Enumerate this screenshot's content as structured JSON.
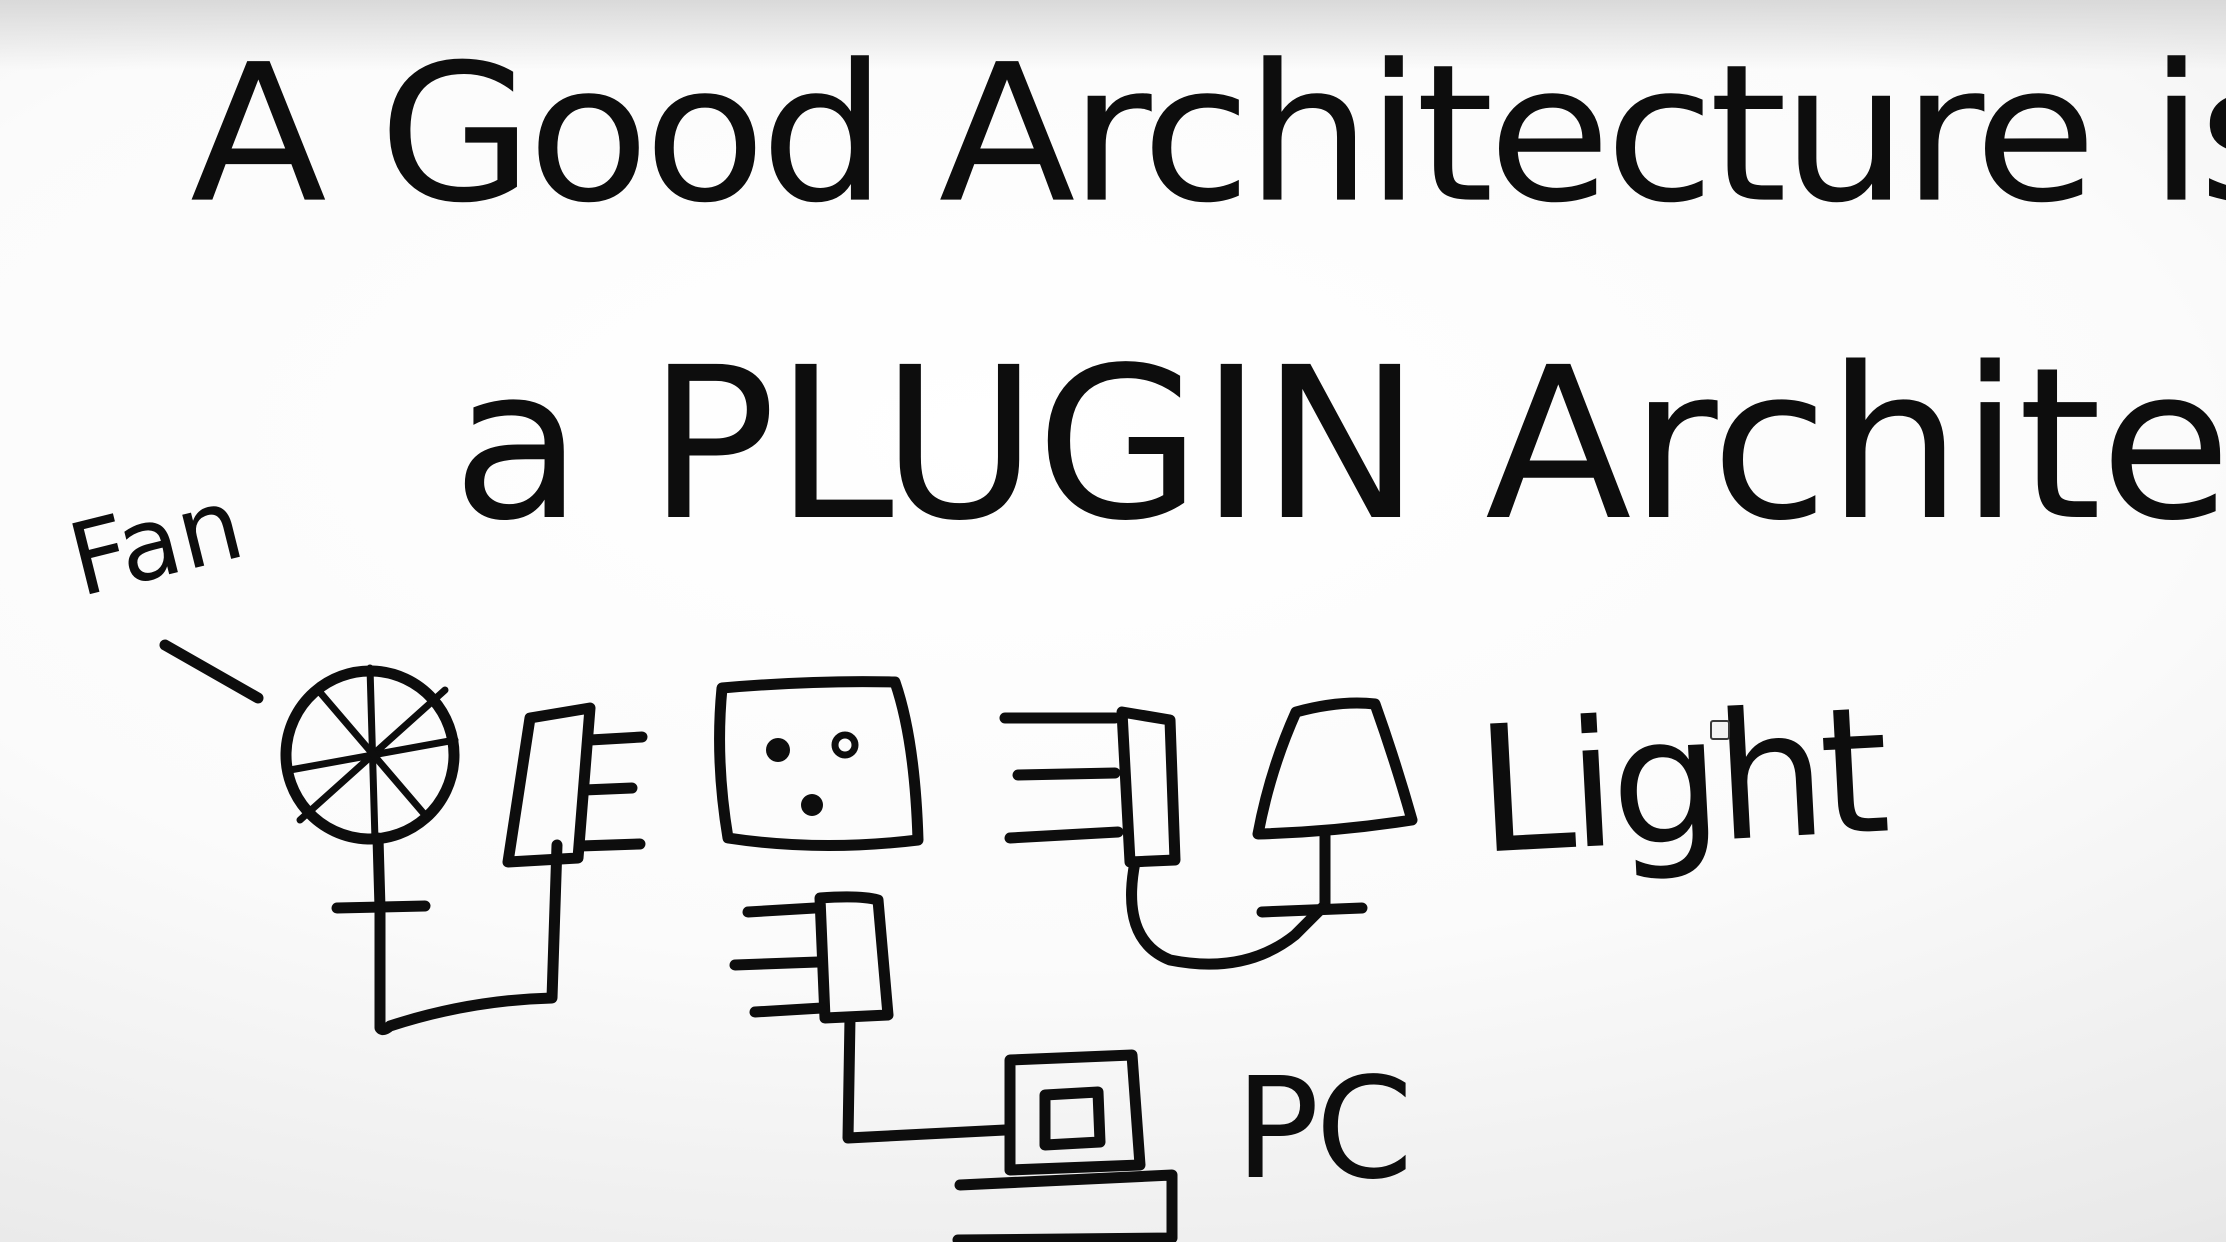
{
  "diagram": {
    "title_line_1": "A Good Architecture is",
    "title_line_2": "a PLUGIN Architecture",
    "labels": {
      "fan": "Fan",
      "light": "Light",
      "pc": "PC"
    },
    "devices": [
      "fan",
      "plug",
      "wall-socket",
      "plug",
      "lamp",
      "plug",
      "computer"
    ]
  }
}
